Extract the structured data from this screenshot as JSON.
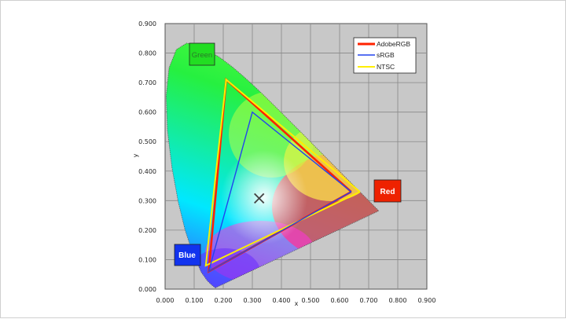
{
  "colors": {
    "AdobeRGB": "#ff2200",
    "sRGB": "#2244ee",
    "NTSC": "#ffee00",
    "grid_background": "#c8c8c8",
    "grid_line": "#888888",
    "white_point_marker": "#444444",
    "primary_green": "#22dd22",
    "primary_red": "#ee2200",
    "primary_blue": "#1133ee"
  },
  "chart_data": {
    "type": "scatter",
    "title": "",
    "xlabel": "x",
    "ylabel": "y",
    "xlim": [
      0,
      0.9
    ],
    "ylim": [
      0,
      0.9
    ],
    "x_ticks": [
      "0.000",
      "0.100",
      "0.200",
      "0.300",
      "0.400",
      "0.500",
      "0.600",
      "0.700",
      "0.800",
      "0.900"
    ],
    "y_ticks": [
      "0.000",
      "0.100",
      "0.200",
      "0.300",
      "0.400",
      "0.500",
      "0.600",
      "0.700",
      "0.800",
      "0.900"
    ],
    "grid": true,
    "legend_position": "top-right",
    "series": [
      {
        "name": "AdobeRGB",
        "x": [
          0.64,
          0.21,
          0.15,
          0.64
        ],
        "y": [
          0.33,
          0.71,
          0.06,
          0.33
        ]
      },
      {
        "name": "sRGB",
        "x": [
          0.64,
          0.3,
          0.15,
          0.64
        ],
        "y": [
          0.33,
          0.6,
          0.06,
          0.33
        ]
      },
      {
        "name": "NTSC",
        "x": [
          0.67,
          0.21,
          0.14,
          0.67
        ],
        "y": [
          0.33,
          0.71,
          0.08,
          0.33
        ]
      }
    ],
    "spectral_locus": {
      "x": [
        0.1741,
        0.1738,
        0.1726,
        0.1689,
        0.1566,
        0.144,
        0.1241,
        0.0913,
        0.0687,
        0.0454,
        0.0235,
        0.0082,
        0.0039,
        0.0139,
        0.0389,
        0.0743,
        0.1142,
        0.1547,
        0.1929,
        0.2296,
        0.2658,
        0.3016,
        0.3373,
        0.3731,
        0.4087,
        0.4441,
        0.4788,
        0.5125,
        0.5448,
        0.5752,
        0.6029,
        0.627,
        0.6482,
        0.6658,
        0.6801,
        0.6915,
        0.7006,
        0.7079,
        0.714,
        0.719,
        0.723,
        0.726,
        0.7347
      ],
      "y": [
        0.005,
        0.0049,
        0.0048,
        0.0069,
        0.0177,
        0.0297,
        0.0578,
        0.1327,
        0.2007,
        0.295,
        0.4127,
        0.5384,
        0.6548,
        0.7502,
        0.812,
        0.8338,
        0.8262,
        0.8059,
        0.7816,
        0.7543,
        0.7243,
        0.6923,
        0.6589,
        0.6245,
        0.5896,
        0.5547,
        0.5202,
        0.4866,
        0.4544,
        0.4242,
        0.3965,
        0.3725,
        0.3514,
        0.334,
        0.3197,
        0.3083,
        0.2993,
        0.292,
        0.2859,
        0.2809,
        0.277,
        0.274,
        0.2653
      ]
    },
    "white_point": {
      "x": 0.3127,
      "y": 0.329
    },
    "annotations": [
      {
        "text": "Green",
        "x": 0.13,
        "y": 0.795
      },
      {
        "text": "Red",
        "x": 0.76,
        "y": 0.328
      },
      {
        "text": "Blue",
        "x": 0.075,
        "y": 0.113
      }
    ]
  }
}
